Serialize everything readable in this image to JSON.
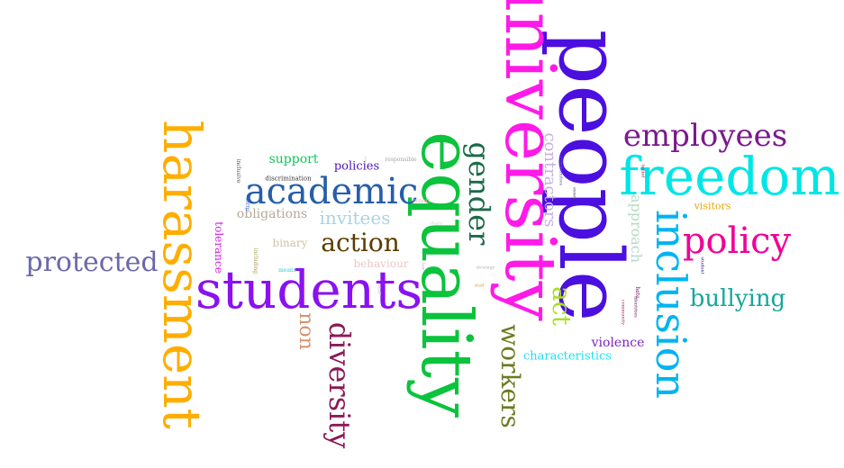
{
  "words": [
    {
      "text": "people",
      "color": "#4b0fe0"
    },
    {
      "text": "university",
      "color": "#ff1ae8"
    },
    {
      "text": "equality",
      "color": "#0bc33c"
    },
    {
      "text": "students",
      "color": "#8a11f0"
    },
    {
      "text": "harassment",
      "color": "#ffae00"
    },
    {
      "text": "freedom",
      "color": "#00e6e6"
    },
    {
      "text": "inclusion",
      "color": "#00b4f0"
    },
    {
      "text": "academic",
      "color": "#265ea8"
    },
    {
      "text": "policy",
      "color": "#f00099"
    },
    {
      "text": "employees",
      "color": "#7a1a8c"
    },
    {
      "text": "diversity",
      "color": "#8c1a58"
    },
    {
      "text": "protected",
      "color": "#6b68a8"
    },
    {
      "text": "gender",
      "color": "#1d6b4a"
    },
    {
      "text": "workers",
      "color": "#6b7b1f"
    },
    {
      "text": "action",
      "color": "#5a3c00"
    },
    {
      "text": "bullying",
      "color": "#17a79a"
    },
    {
      "text": "act",
      "color": "#a8e020"
    },
    {
      "text": "invitees",
      "color": "#a9d3e3"
    },
    {
      "text": "non",
      "color": "#d49070"
    },
    {
      "text": "contractors",
      "color": "#c6b1e2"
    },
    {
      "text": "approach",
      "color": "#b7d9c7"
    },
    {
      "text": "obligations",
      "color": "#b8a898"
    },
    {
      "text": "violence",
      "color": "#7c22c2"
    },
    {
      "text": "characteristics",
      "color": "#1ee0ee"
    },
    {
      "text": "support",
      "color": "#14c55a"
    },
    {
      "text": "policies",
      "color": "#4b13b8"
    },
    {
      "text": "binary",
      "color": "#d2c0a5"
    },
    {
      "text": "behaviour",
      "color": "#f0c5c7"
    },
    {
      "text": "tolerance",
      "color": "#d81ae8"
    },
    {
      "text": "visitors",
      "color": "#e8a800"
    },
    {
      "text": "discrimination",
      "color": "#3a3a3a"
    },
    {
      "text": "inclusive",
      "color": "#555555"
    },
    {
      "text": "term",
      "color": "#3c6ad8"
    },
    {
      "text": "including",
      "color": "#a6a050"
    },
    {
      "text": "means",
      "color": "#3ac6c6"
    },
    {
      "text": "responsible",
      "color": "#a4a4a4"
    },
    {
      "text": "report",
      "color": "#e7b0b0"
    },
    {
      "text": "strategy",
      "color": "#b1b1b1"
    },
    {
      "text": "staff",
      "color": "#e0a050"
    },
    {
      "text": "hate",
      "color": "#7a1a5a"
    },
    {
      "text": "identities",
      "color": "#6a1a6a"
    },
    {
      "text": "community",
      "color": "#b02a6a"
    },
    {
      "text": "student",
      "color": "#2a1a8a"
    },
    {
      "text": "belief",
      "color": "#7a2a5a"
    },
    {
      "text": "communities",
      "color": "#5a6a9a"
    },
    {
      "text": "essex",
      "color": "#444444"
    },
    {
      "text": "share",
      "color": "#c8d8c8"
    },
    {
      "text": "law",
      "color": "#e0a0c0"
    },
    {
      "text": "see",
      "color": "#d0d0d0"
    },
    {
      "text": "staff",
      "color": "#c8c8c8"
    }
  ]
}
